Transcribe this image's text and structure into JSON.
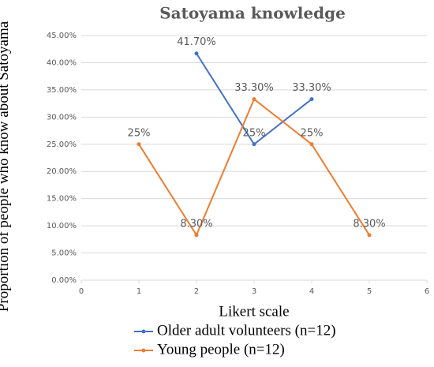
{
  "chart_data": {
    "type": "line",
    "title": "Satoyama knowledge",
    "x_label": "Likert scale",
    "y_label": "Proportion of people who know about Satoyama",
    "xlim": [
      0,
      6
    ],
    "xticks": [
      0,
      1,
      2,
      3,
      4,
      5,
      6
    ],
    "ylim": [
      0,
      45
    ],
    "yticks": [
      {
        "value": 0,
        "label": "0.00%"
      },
      {
        "value": 5,
        "label": "5.00%"
      },
      {
        "value": 10,
        "label": "10.00%"
      },
      {
        "value": 15,
        "label": "15.00%"
      },
      {
        "value": 20,
        "label": "20.00%"
      },
      {
        "value": 25,
        "label": "25.00%"
      },
      {
        "value": 30,
        "label": "30.00%"
      },
      {
        "value": 35,
        "label": "35.00%"
      },
      {
        "value": 40,
        "label": "40.00%"
      },
      {
        "value": 45,
        "label": "45.00%"
      }
    ],
    "grid": true,
    "series": [
      {
        "name": "Older adult volunteers (n=12)",
        "color": "#4472c4",
        "x": [
          2,
          3,
          4
        ],
        "values": [
          41.7,
          25,
          33.3
        ],
        "value_labels": [
          "41.70%",
          "25%",
          "33.30%"
        ]
      },
      {
        "name": "Young people (n=12)",
        "color": "#ed7d31",
        "x": [
          1,
          2,
          3,
          4,
          5
        ],
        "values": [
          25,
          8.3,
          33.3,
          25,
          8.3
        ],
        "value_labels": [
          "25%",
          "8.30%",
          "33.30%",
          "25%",
          "8.30%"
        ]
      }
    ]
  }
}
